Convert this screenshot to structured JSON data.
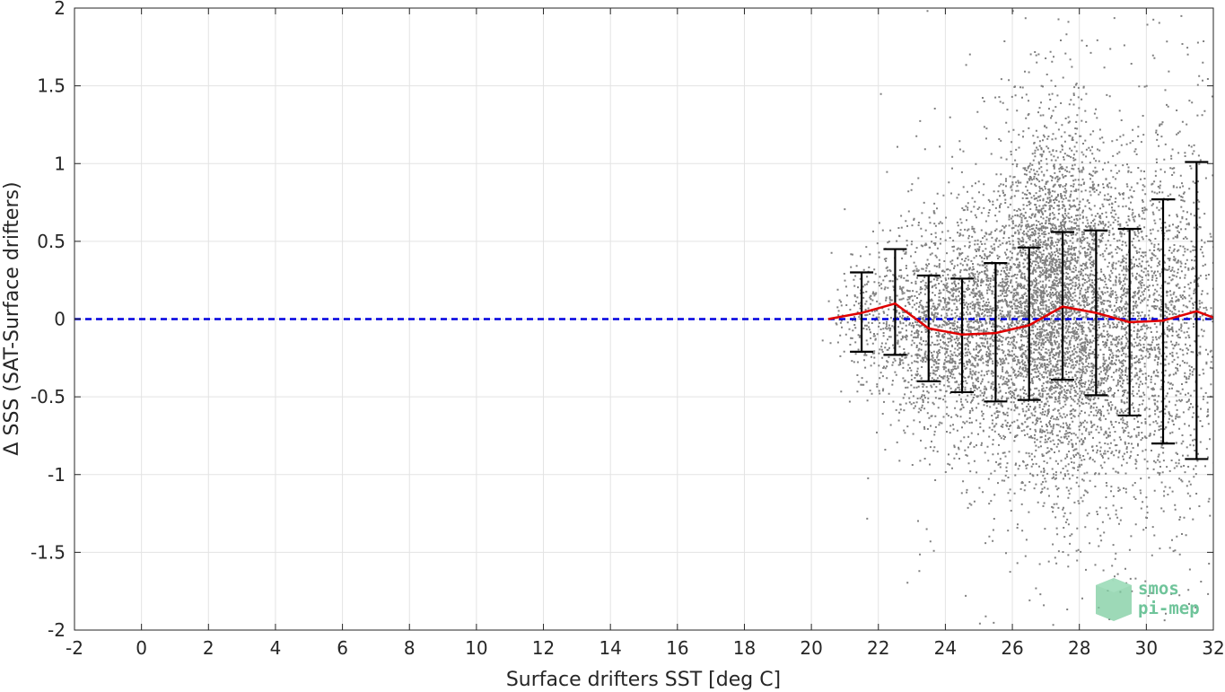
{
  "chart_data": {
    "type": "scatter",
    "xlabel": "Surface drifters SST [deg C]",
    "ylabel": "Δ SSS (SAT-Surface drifters)",
    "xlim": [
      -2,
      32
    ],
    "ylim": [
      -2,
      2
    ],
    "xticks": [
      -2,
      0,
      2,
      4,
      6,
      8,
      10,
      12,
      14,
      16,
      18,
      20,
      22,
      24,
      26,
      28,
      30,
      32
    ],
    "yticks": [
      -2,
      -1.5,
      -1,
      -0.5,
      0,
      0.5,
      1,
      1.5,
      2
    ],
    "xtick_labels": [
      "-2",
      "0",
      "2",
      "4",
      "6",
      "8",
      "10",
      "12",
      "14",
      "16",
      "18",
      "20",
      "22",
      "24",
      "26",
      "28",
      "30",
      "32"
    ],
    "ytick_labels": [
      "-2",
      "-1.5",
      "-1",
      "-0.5",
      "0",
      "0.5",
      "1",
      "1.5",
      "2"
    ],
    "grid": true,
    "zero_line": {
      "y": 0,
      "style": "dashed",
      "color": "#0000e0"
    },
    "scatter_color": "#808080",
    "mean_line_color": "#e00000",
    "error_bar_color": "#000000",
    "mean_line": {
      "x": [
        20.5,
        21.5,
        22.5,
        23.5,
        24.5,
        25.5,
        26.5,
        27.5,
        28.5,
        29.5,
        30.5,
        31.5,
        32
      ],
      "y": [
        0.0,
        0.04,
        0.1,
        -0.06,
        -0.1,
        -0.09,
        -0.04,
        0.08,
        0.04,
        -0.02,
        -0.01,
        0.05,
        0.01
      ]
    },
    "error_bars": [
      {
        "x": 21.5,
        "low": -0.21,
        "high": 0.3
      },
      {
        "x": 22.5,
        "low": -0.23,
        "high": 0.45
      },
      {
        "x": 23.5,
        "low": -0.4,
        "high": 0.28
      },
      {
        "x": 24.5,
        "low": -0.47,
        "high": 0.26
      },
      {
        "x": 25.5,
        "low": -0.53,
        "high": 0.36
      },
      {
        "x": 26.5,
        "low": -0.52,
        "high": 0.46
      },
      {
        "x": 27.5,
        "low": -0.39,
        "high": 0.56
      },
      {
        "x": 28.5,
        "low": -0.49,
        "high": 0.57
      },
      {
        "x": 29.5,
        "low": -0.62,
        "high": 0.58
      },
      {
        "x": 30.5,
        "low": -0.8,
        "high": 0.77
      },
      {
        "x": 31.5,
        "low": -0.9,
        "high": 1.01
      }
    ],
    "scatter_clusters": [
      {
        "x_center": 21.8,
        "x_spread": 0.6,
        "y_center": 0.05,
        "y_spread": 0.22,
        "count": 250
      },
      {
        "x_center": 23.5,
        "x_spread": 0.8,
        "y_center": -0.05,
        "y_spread": 0.32,
        "count": 900
      },
      {
        "x_center": 25.2,
        "x_spread": 0.9,
        "y_center": -0.05,
        "y_spread": 0.4,
        "count": 1500
      },
      {
        "x_center": 27.2,
        "x_spread": 0.8,
        "y_center": 0.12,
        "y_spread": 0.55,
        "count": 3200
      },
      {
        "x_center": 29.2,
        "x_spread": 0.9,
        "y_center": -0.05,
        "y_spread": 0.55,
        "count": 1800
      },
      {
        "x_center": 31.0,
        "x_spread": 0.6,
        "y_center": 0.05,
        "y_spread": 0.65,
        "count": 700
      }
    ]
  },
  "logo": {
    "line1": "smos",
    "line2": "pi-mep"
  }
}
